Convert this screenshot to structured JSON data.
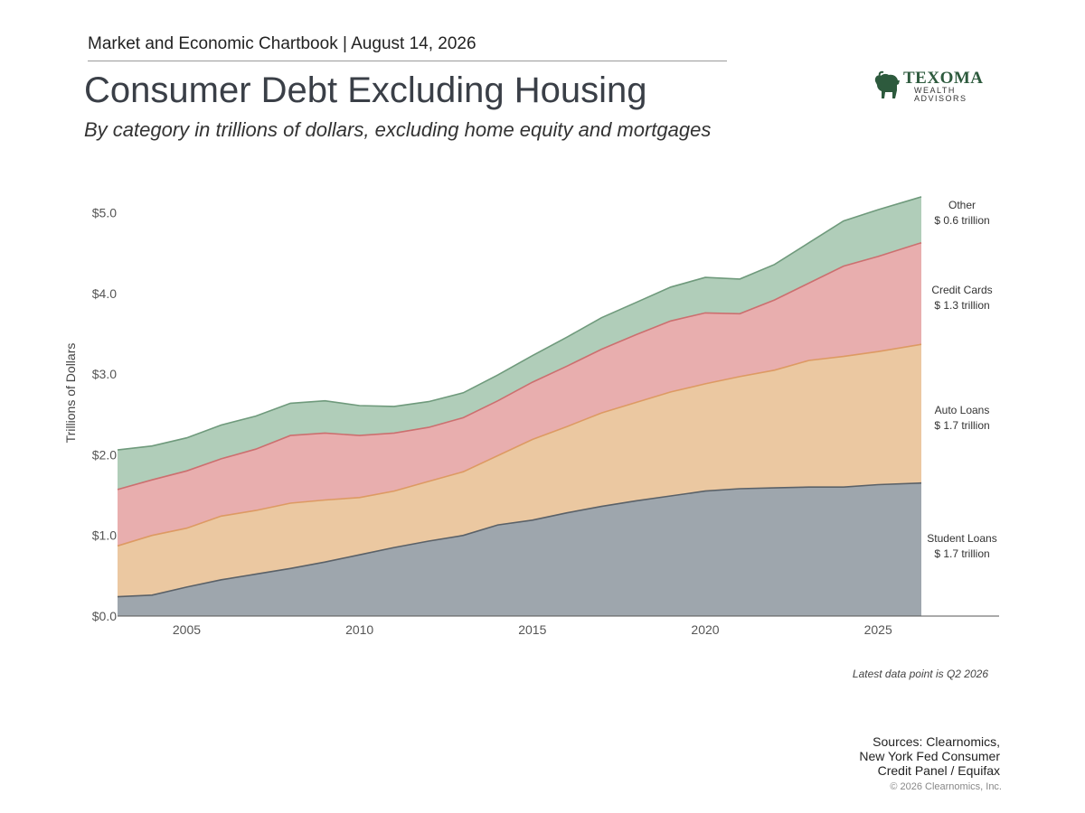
{
  "header": {
    "chartbook": "Market and Economic Chartbook | August 14, 2026",
    "title": "Consumer Debt Excluding Housing",
    "subtitle": "By category in trillions of dollars, excluding home equity and mortgages"
  },
  "logo": {
    "brand": "TEXOMA",
    "line1": "WEALTH",
    "line2": "ADVISORS",
    "icon": "bull-icon"
  },
  "footnote": "Latest data point is Q2 2026",
  "sources": [
    "Sources: Clearnomics,",
    "New York Fed Consumer",
    "Credit Panel / Equifax"
  ],
  "copyright": "© 2026 Clearnomics, Inc.",
  "colors": {
    "student": "#9ea6ad",
    "student_line": "#5a6168",
    "auto": "#ebc8a1",
    "auto_line": "#dd9a63",
    "credit": "#e8aeae",
    "credit_line": "#cc6f6f",
    "other": "#b0cdb9",
    "other_line": "#6f9a7c"
  },
  "chart_data": {
    "type": "area",
    "stacked": true,
    "ylabel": "Trillions of Dollars",
    "ylim": [
      0,
      5.4
    ],
    "xlim": [
      2003.0,
      2028.5
    ],
    "yticks": [
      "$0.0",
      "$1.0",
      "$2.0",
      "$3.0",
      "$4.0",
      "$5.0"
    ],
    "xticks": [
      "2005",
      "2010",
      "2015",
      "2020",
      "2025"
    ],
    "x": [
      2003.0,
      2004.0,
      2005.0,
      2006.0,
      2007.0,
      2008.0,
      2009.0,
      2010.0,
      2011.0,
      2012.0,
      2013.0,
      2014.0,
      2015.0,
      2016.0,
      2017.0,
      2018.0,
      2019.0,
      2020.0,
      2021.0,
      2022.0,
      2023.0,
      2024.0,
      2025.0,
      2026.25
    ],
    "series": [
      {
        "name": "Student Loans",
        "values": [
          0.24,
          0.26,
          0.36,
          0.45,
          0.52,
          0.59,
          0.67,
          0.76,
          0.85,
          0.93,
          1.0,
          1.13,
          1.19,
          1.28,
          1.36,
          1.43,
          1.49,
          1.55,
          1.58,
          1.59,
          1.6,
          1.6,
          1.63,
          1.65
        ],
        "label": "Student Loans",
        "total_label": "$ 1.7 trillion"
      },
      {
        "name": "Auto Loans",
        "values": [
          0.63,
          0.74,
          0.73,
          0.79,
          0.79,
          0.81,
          0.77,
          0.71,
          0.7,
          0.74,
          0.79,
          0.86,
          1.0,
          1.07,
          1.16,
          1.22,
          1.29,
          1.33,
          1.39,
          1.46,
          1.57,
          1.62,
          1.65,
          1.72
        ],
        "label": "Auto Loans",
        "total_label": "$ 1.7 trillion"
      },
      {
        "name": "Credit Cards",
        "values": [
          0.7,
          0.69,
          0.71,
          0.71,
          0.76,
          0.84,
          0.83,
          0.77,
          0.72,
          0.67,
          0.67,
          0.68,
          0.71,
          0.75,
          0.79,
          0.84,
          0.88,
          0.88,
          0.78,
          0.87,
          0.96,
          1.12,
          1.18,
          1.26
        ],
        "label": "Credit Cards",
        "total_label": "$ 1.3 trillion"
      },
      {
        "name": "Other",
        "values": [
          0.49,
          0.42,
          0.41,
          0.42,
          0.41,
          0.4,
          0.4,
          0.37,
          0.33,
          0.32,
          0.31,
          0.32,
          0.33,
          0.36,
          0.39,
          0.4,
          0.42,
          0.44,
          0.43,
          0.44,
          0.5,
          0.56,
          0.58,
          0.57
        ],
        "label": "Other",
        "total_label": "$ 0.6 trillion"
      }
    ],
    "legend": "right-side labels"
  }
}
